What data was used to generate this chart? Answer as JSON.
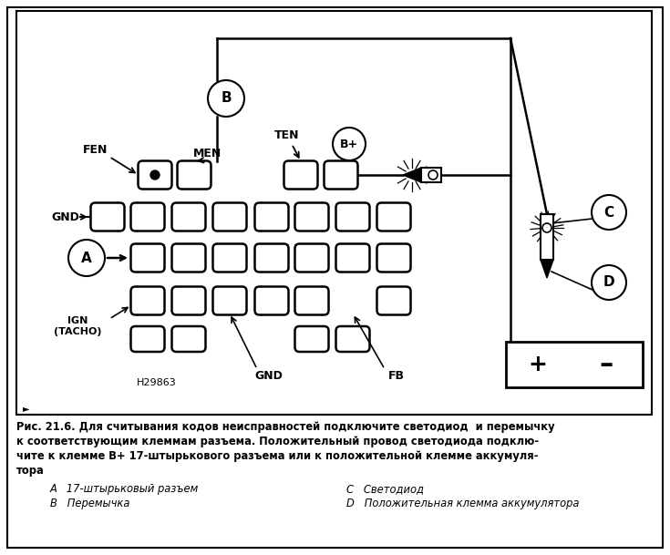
{
  "bg_color": "#ffffff",
  "fig_width": 7.35,
  "fig_height": 6.09,
  "caption_line1": "Рис. 21.6. Для считывания кодов неисправностей подключите светодиод  и перемычку",
  "caption_line2": "к соответствующим клеммам разъема. Положительный провод светодиода подклю-",
  "caption_line3": "чите к клемме В+ 17-штырькового разъема или к положительной клемме аккумуля-",
  "caption_line4": "тора",
  "legend_A": "A   17-штырьковый разъем",
  "legend_B": "B   Перемычка",
  "legend_C": "C   Светодиод",
  "legend_D": "D   Положительная клемма аккумулятора",
  "label_FEN": "FEN",
  "label_MEN": "MEN",
  "label_TEN": "TEN",
  "label_Bplus": "B+",
  "label_GND1": "GND",
  "label_GND2": "GND",
  "label_FB": "FB",
  "label_IGN": "IGN\n(TACHO)",
  "label_H29863": "H29863",
  "label_A": "A",
  "label_B": "B",
  "label_C": "C",
  "label_D": "D"
}
